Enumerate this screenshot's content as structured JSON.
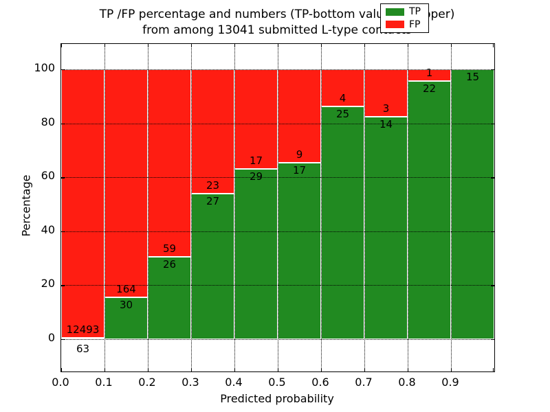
{
  "figure": {
    "title_line1": "TP /FP percentage and numbers (TP-bottom value, FP-upper)",
    "title_line2": "from among 13041 submitted L-type contacts",
    "xlabel": "Predicted probability",
    "ylabel": "Percentage"
  },
  "legend": {
    "entries": [
      {
        "label": "TP",
        "color_key": "tp"
      },
      {
        "label": "FP",
        "color_key": "fp"
      }
    ]
  },
  "chart_data": {
    "type": "bar",
    "stacked": true,
    "title": "TP /FP percentage and numbers (TP-bottom value, FP-upper) from among 13041 submitted L-type contacts",
    "xlabel": "Predicted probability",
    "ylabel": "Percentage",
    "total_contacts": 13041,
    "x_tick_labels": [
      "0.0",
      "0.1",
      "0.2",
      "0.3",
      "0.4",
      "0.5",
      "0.6",
      "0.7",
      "0.8",
      "0.9"
    ],
    "y_tick_values": [
      0,
      20,
      40,
      60,
      80,
      100
    ],
    "ylim": [
      -12,
      110
    ],
    "xlim": [
      0.0,
      1.0
    ],
    "grid": true,
    "legend_position": "upper right",
    "colors": {
      "tp": "#218a21",
      "fp": "#ff1d12",
      "grid": "#000000",
      "bar_edge": "#ffffff"
    },
    "categories": [
      "0.0-0.1",
      "0.1-0.2",
      "0.2-0.3",
      "0.3-0.4",
      "0.4-0.5",
      "0.5-0.6",
      "0.6-0.7",
      "0.7-0.8",
      "0.8-0.9",
      "0.9-1.0"
    ],
    "series": [
      {
        "name": "TP",
        "values": [
          63,
          30,
          26,
          27,
          29,
          17,
          25,
          14,
          22,
          15
        ]
      },
      {
        "name": "FP",
        "values": [
          12493,
          164,
          59,
          23,
          17,
          9,
          4,
          3,
          1,
          0
        ]
      }
    ],
    "tp_percentages": [
      0.5,
      15.46,
      30.59,
      54.0,
      63.04,
      65.38,
      86.21,
      82.35,
      95.65,
      100.0
    ]
  }
}
